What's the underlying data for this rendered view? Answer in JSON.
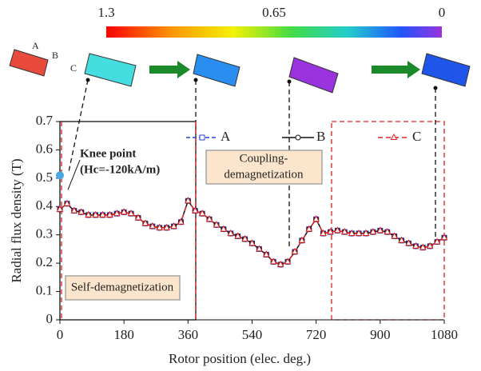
{
  "chart_data": {
    "type": "line",
    "x": [
      0,
      20,
      40,
      60,
      80,
      100,
      120,
      140,
      160,
      180,
      200,
      220,
      240,
      260,
      280,
      300,
      320,
      340,
      360,
      380,
      400,
      420,
      440,
      460,
      480,
      500,
      520,
      540,
      560,
      580,
      600,
      620,
      640,
      660,
      680,
      700,
      720,
      740,
      760,
      780,
      800,
      820,
      840,
      860,
      880,
      900,
      920,
      940,
      960,
      980,
      1000,
      1020,
      1040,
      1060,
      1080
    ],
    "series": [
      {
        "name": "A",
        "color": "#2b3fd6",
        "values": [
          0.39,
          0.41,
          0.385,
          0.38,
          0.37,
          0.37,
          0.37,
          0.37,
          0.375,
          0.38,
          0.375,
          0.36,
          0.34,
          0.33,
          0.325,
          0.325,
          0.33,
          0.345,
          0.42,
          0.385,
          0.375,
          0.355,
          0.335,
          0.32,
          0.305,
          0.295,
          0.285,
          0.27,
          0.25,
          0.23,
          0.205,
          0.195,
          0.205,
          0.24,
          0.28,
          0.32,
          0.355,
          0.305,
          0.31,
          0.315,
          0.31,
          0.305,
          0.305,
          0.305,
          0.31,
          0.315,
          0.31,
          0.295,
          0.28,
          0.27,
          0.26,
          0.255,
          0.26,
          0.275,
          0.29
        ]
      },
      {
        "name": "B",
        "color": "#111111",
        "values": [
          0.39,
          0.41,
          0.385,
          0.38,
          0.37,
          0.37,
          0.37,
          0.37,
          0.375,
          0.38,
          0.375,
          0.36,
          0.34,
          0.33,
          0.325,
          0.325,
          0.33,
          0.345,
          0.42,
          0.385,
          0.375,
          0.355,
          0.335,
          0.32,
          0.305,
          0.295,
          0.285,
          0.27,
          0.25,
          0.23,
          0.205,
          0.195,
          0.205,
          0.24,
          0.28,
          0.32,
          0.355,
          0.305,
          0.31,
          0.315,
          0.31,
          0.305,
          0.305,
          0.305,
          0.31,
          0.315,
          0.31,
          0.295,
          0.28,
          0.27,
          0.26,
          0.255,
          0.26,
          0.275,
          0.29
        ]
      },
      {
        "name": "C",
        "color": "#e0201e",
        "values": [
          0.39,
          0.41,
          0.385,
          0.38,
          0.37,
          0.37,
          0.37,
          0.37,
          0.375,
          0.38,
          0.375,
          0.36,
          0.34,
          0.33,
          0.325,
          0.325,
          0.33,
          0.345,
          0.42,
          0.385,
          0.375,
          0.355,
          0.335,
          0.32,
          0.305,
          0.295,
          0.285,
          0.27,
          0.25,
          0.23,
          0.205,
          0.195,
          0.205,
          0.24,
          0.28,
          0.32,
          0.355,
          0.305,
          0.31,
          0.315,
          0.31,
          0.305,
          0.305,
          0.305,
          0.31,
          0.315,
          0.31,
          0.295,
          0.28,
          0.27,
          0.26,
          0.255,
          0.26,
          0.275,
          0.29
        ]
      }
    ],
    "xlabel": "Rotor position (elec. deg.)",
    "ylabel": "Radial flux density (T)",
    "xlim": [
      0,
      1080
    ],
    "xticks": [
      0,
      180,
      360,
      540,
      720,
      900,
      1080
    ],
    "ylim": [
      0,
      0.7
    ],
    "yticks": [
      0,
      0.1,
      0.2,
      0.3,
      0.4,
      0.5,
      0.6,
      0.7
    ],
    "knee_point": {
      "x": 0,
      "y": 0.51,
      "label": "Knee point",
      "note": "(Hc=-120kA/m)"
    },
    "annotations": [
      "Coupling-",
      "demagnetization",
      "Self-demagnetization"
    ],
    "magnet_points": [
      "A",
      "B",
      "C"
    ],
    "colorbar": {
      "lim": [
        1.3,
        0
      ],
      "ticks": [
        1.3,
        0.65,
        0
      ]
    }
  }
}
